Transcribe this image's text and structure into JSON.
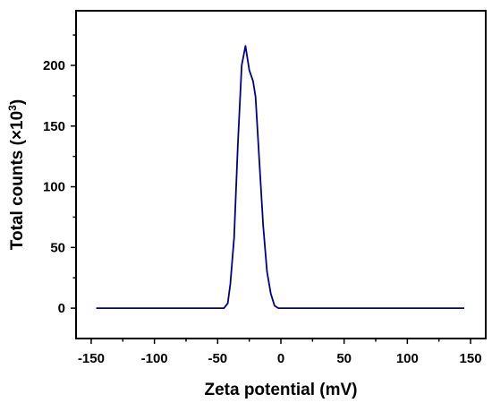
{
  "chart_data": {
    "type": "line",
    "title": "",
    "xlabel": "Zeta potential (mV)",
    "ylabel": {
      "prefix": "Total counts (×10",
      "superscript": "3",
      "suffix": ")"
    },
    "xlim": [
      -162,
      162
    ],
    "ylim": [
      -25,
      245
    ],
    "xticks": [
      -150,
      -100,
      -50,
      0,
      50,
      100,
      150
    ],
    "yticks": [
      0,
      50,
      100,
      150,
      200
    ],
    "xminor_ticks": [
      -125,
      -75,
      -25,
      25,
      75,
      125
    ],
    "yminor_ticks": [
      25,
      75,
      125,
      175,
      225
    ],
    "grid": false,
    "legend": "none",
    "series": [
      {
        "color": "#00008B",
        "x": [
          -146,
          -100,
          -50,
          -45,
          -42,
          -40,
          -37,
          -34,
          -31,
          -28,
          -25,
          -22,
          -20,
          -17,
          -14,
          -11,
          -8,
          -5,
          -2,
          0,
          50,
          100,
          145
        ],
        "y": [
          0,
          0,
          0,
          0,
          4,
          20,
          58,
          135,
          200,
          216,
          196,
          187,
          174,
          120,
          68,
          30,
          12,
          2,
          0,
          0,
          0,
          0,
          0
        ]
      }
    ]
  }
}
